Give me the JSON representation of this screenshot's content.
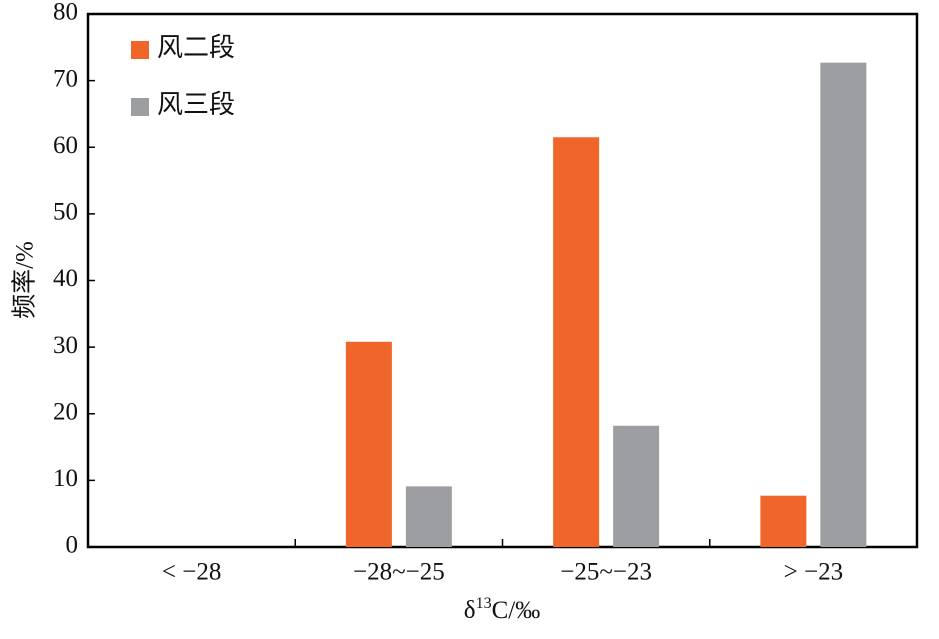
{
  "chart_data": {
    "type": "bar",
    "categories": [
      "< −28",
      "−28~−25",
      "−25~−23",
      "> −23"
    ],
    "series": [
      {
        "name": "风二段",
        "color": "#f0652a",
        "values": [
          0,
          30.8,
          61.5,
          7.7
        ]
      },
      {
        "name": "风三段",
        "color": "#9d9ea2",
        "values": [
          0,
          9.1,
          18.2,
          72.7
        ]
      }
    ],
    "ylabel": "频率/%",
    "xlabel": [
      "δ",
      "13",
      "C/‰"
    ],
    "ylim": [
      0,
      80
    ],
    "yticks": [
      0,
      10,
      20,
      30,
      40,
      50,
      60,
      70,
      80
    ],
    "grid": false,
    "legend": "upper left"
  }
}
